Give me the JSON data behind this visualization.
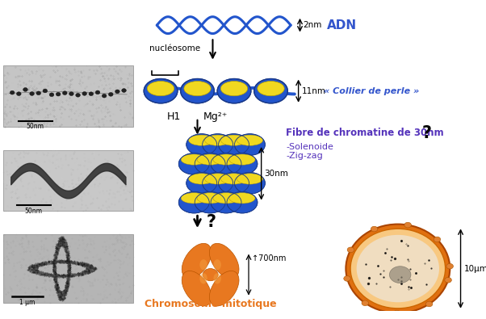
{
  "bg_color": "#ffffff",
  "blue_color": "#2255cc",
  "blue_dark": "#1a3a8a",
  "orange_color": "#e87820",
  "yellow_color": "#f0d820",
  "text_blue": "#3355cc",
  "text_purple": "#5533bb",
  "labels": {
    "adn": "ADN",
    "nucleosome": "nucléosome",
    "collier": "« Collier de perle »",
    "h1": "H1",
    "mg": "Mg²⁺",
    "fibre": "Fibre de chromatine de 30nm",
    "solenoide": "-Solenoide",
    "zigzag": "-Zig-zag",
    "chromosome": "Chromosome mitotique",
    "2nm": "2nm",
    "11nm": "11nm",
    "30nm": "30nm",
    "700nm": "↑700nm",
    "10um": "10μm",
    "50nm1": "50nm",
    "50nm2": "50nm",
    "1um": "1 μm",
    "q1": "?",
    "q2": "?"
  }
}
